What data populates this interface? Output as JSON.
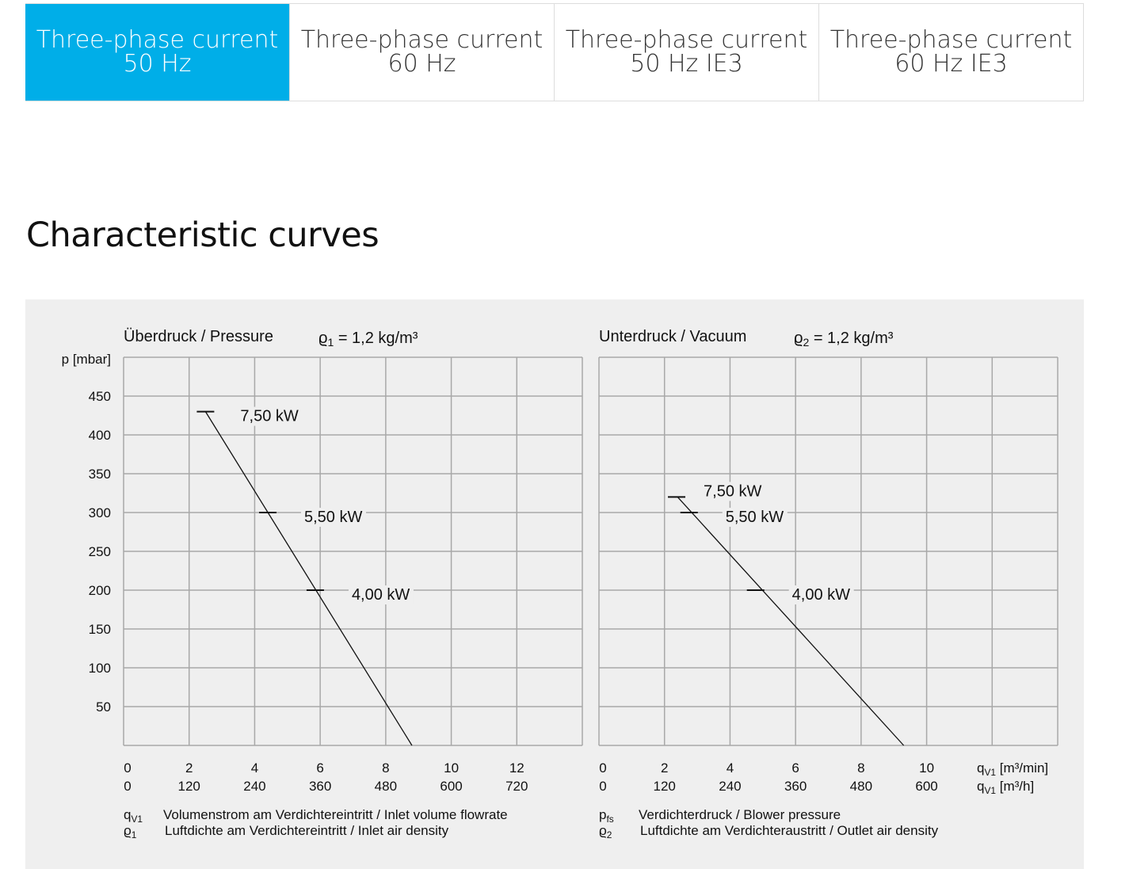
{
  "tabs": [
    {
      "line1": "Three-phase current",
      "line2": "50 Hz",
      "active": true
    },
    {
      "line1": "Three-phase current",
      "line2": "60 Hz",
      "active": false
    },
    {
      "line1": "Three-phase current",
      "line2": "50 Hz IE3",
      "active": false
    },
    {
      "line1": "Three-phase current",
      "line2": "60 Hz IE3",
      "active": false
    }
  ],
  "heading": "Characteristic curves",
  "colors": {
    "accent": "#00aee8",
    "panel": "#efefef",
    "grid": "#a8a8a8"
  },
  "chart_data": [
    {
      "type": "line",
      "title": "Überdruck / Pressure",
      "density_symbol": "ϱ",
      "density_sub": "1",
      "density_value": " = 1,2 kg/m³",
      "ylabel": "p [mbar]",
      "ylim": [
        0,
        500
      ],
      "yticks": [
        450,
        400,
        350,
        300,
        250,
        200,
        150,
        100,
        50
      ],
      "xlim": [
        0,
        14
      ],
      "xticks_min": [
        "0",
        "2",
        "4",
        "6",
        "8",
        "10",
        "12"
      ],
      "xticks_h": [
        "0",
        "120",
        "240",
        "360",
        "480",
        "600",
        "720"
      ],
      "x_units": [],
      "series": [
        {
          "name": "curve",
          "x": [
            2.5,
            8.8
          ],
          "y": [
            430,
            0
          ]
        }
      ],
      "markers": [
        {
          "label": "7,50 kW",
          "x": 2.5,
          "y": 430
        },
        {
          "label": "5,50 kW",
          "x": 4.4,
          "y": 300
        },
        {
          "label": "4,00 kW",
          "x": 5.85,
          "y": 200
        }
      ],
      "legend": [
        {
          "sym": "q",
          "sub": "V1",
          "text": "Volumenstrom am Verdichtereintritt / Inlet volume flowrate"
        },
        {
          "sym": "ϱ",
          "sub": "1",
          "text": "Luftdichte am Verdichtereintritt / Inlet air density"
        }
      ]
    },
    {
      "type": "line",
      "title": "Unterdruck / Vacuum",
      "density_symbol": "ϱ",
      "density_sub": "2",
      "density_value": " = 1,2 kg/m³",
      "ylabel": "",
      "ylim": [
        0,
        500
      ],
      "yticks": [],
      "xlim": [
        0,
        14
      ],
      "xticks_min": [
        "0",
        "2",
        "4",
        "6",
        "8",
        "10"
      ],
      "xticks_h": [
        "0",
        "120",
        "240",
        "360",
        "480",
        "600"
      ],
      "x_units": [
        "q_V1 [m³/min]",
        "q_V1 [m³/h]"
      ],
      "series": [
        {
          "name": "curve",
          "x": [
            2.4,
            9.3
          ],
          "y": [
            320,
            0
          ]
        }
      ],
      "markers": [
        {
          "label": "7,50 kW",
          "x": 2.37,
          "y": 320
        },
        {
          "label": "5,50 kW",
          "x": 2.75,
          "y": 300
        },
        {
          "label": "4,00 kW",
          "x": 4.78,
          "y": 200
        }
      ],
      "legend": [
        {
          "sym": "p",
          "sub": "fs",
          "text": "Verdichterdruck / Blower pressure"
        },
        {
          "sym": "ϱ",
          "sub": "2",
          "text": "Luftdichte am Verdichteraustritt / Outlet air density"
        }
      ]
    }
  ]
}
